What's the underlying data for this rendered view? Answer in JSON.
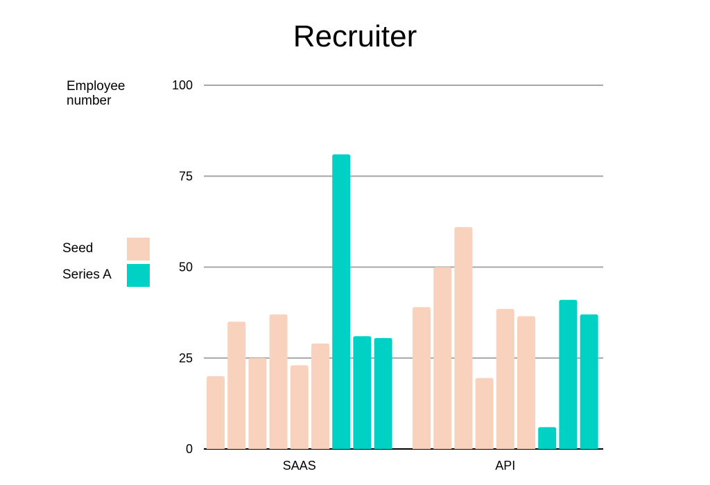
{
  "chart_data": {
    "type": "bar",
    "title": "Recruiter",
    "ylabel": "Employee\nnumber",
    "xlabel": "",
    "ylim": [
      0,
      100
    ],
    "yticks": [
      0,
      25,
      50,
      75,
      100
    ],
    "grid": true,
    "legend_position": "left",
    "legend": [
      {
        "name": "Seed",
        "color": "#f8d2bd"
      },
      {
        "name": "Series A",
        "color": "#00d1c5"
      }
    ],
    "groups": [
      {
        "category": "SAAS",
        "bars": [
          {
            "series": "Seed",
            "value": 20
          },
          {
            "series": "Seed",
            "value": 35
          },
          {
            "series": "Seed",
            "value": 25
          },
          {
            "series": "Seed",
            "value": 37
          },
          {
            "series": "Seed",
            "value": 23
          },
          {
            "series": "Seed",
            "value": 29
          },
          {
            "series": "Series A",
            "value": 81
          },
          {
            "series": "Series A",
            "value": 31
          },
          {
            "series": "Series A",
            "value": 30.5
          }
        ]
      },
      {
        "category": "API",
        "bars": [
          {
            "series": "Seed",
            "value": 39
          },
          {
            "series": "Seed",
            "value": 50
          },
          {
            "series": "Seed",
            "value": 61
          },
          {
            "series": "Seed",
            "value": 19.5
          },
          {
            "series": "Seed",
            "value": 38.5
          },
          {
            "series": "Seed",
            "value": 36.5
          },
          {
            "series": "Series A",
            "value": 6
          },
          {
            "series": "Series A",
            "value": 41
          },
          {
            "series": "Series A",
            "value": 37
          }
        ]
      }
    ]
  }
}
